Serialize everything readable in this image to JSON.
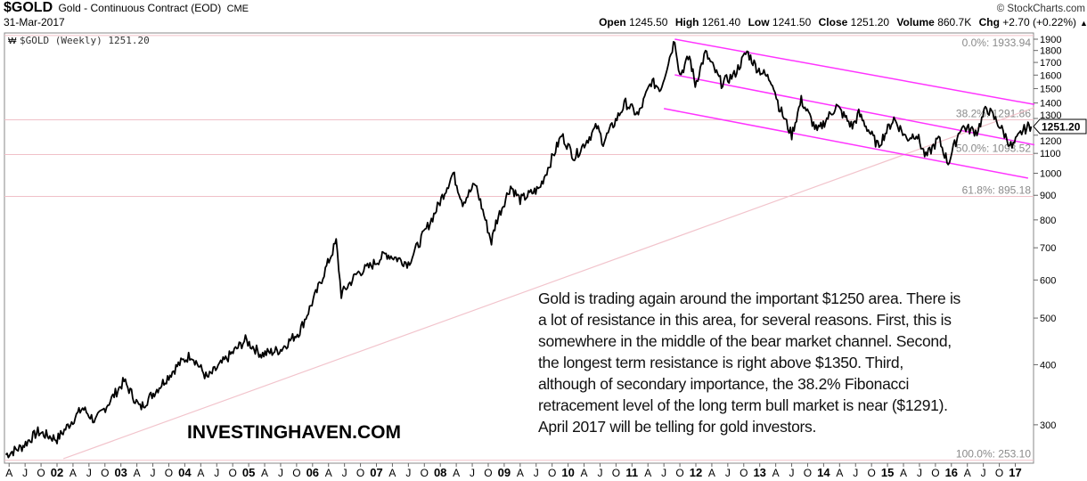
{
  "header": {
    "symbol": "$GOLD",
    "name": "Gold - Continuous Contract (EOD)",
    "exchange": "CME",
    "date": "31-Mar-2017",
    "copyright": "© StockCharts.com",
    "open_label": "Open",
    "open": "1245.50",
    "high_label": "High",
    "high": "1261.40",
    "low_label": "Low",
    "low": "1241.50",
    "close_label": "Close",
    "close": "1251.20",
    "volume_label": "Volume",
    "volume": "860.7K",
    "chg_label": "Chg",
    "chg": "+2.70 (+0.22%)"
  },
  "legend": "$GOLD (Weekly) 1251.20",
  "price_tag": "1251.20",
  "watermark": "INVESTINGHAVEN.COM",
  "annotation": [
    "Gold is trading again around the important $1250 area. There is",
    "a lot of resistance in this area, for several reasons. First, this is",
    "somewhere in the middle of the bear market channel. Second,",
    "the longest term resistance is right above $1350. Third,",
    "although of secondary importance, the 38.2% Fibonacci",
    "retracement level of the long term bull market is near ($1291).",
    "April 2017 will be telling for gold investors."
  ],
  "colors": {
    "price": "#000000",
    "channel": "#ff33ff",
    "trendline": "#f2c4cc",
    "fib": "#f0c0c8"
  },
  "chart_data": {
    "type": "line",
    "title": "$GOLD Gold - Continuous Contract (EOD) CME",
    "y_scale": "log",
    "ylim": [
      240,
      1950
    ],
    "xlim": [
      2001.18,
      2017.27
    ],
    "y_ticks": [
      300,
      400,
      500,
      600,
      700,
      800,
      900,
      1000,
      1100,
      1200,
      1300,
      1400,
      1500,
      1600,
      1700,
      1800,
      1900
    ],
    "x_tick_start": 2001.25,
    "x_tick_step": 0.25,
    "x_tick_labels": [
      "A",
      "J",
      "O",
      "02",
      "A",
      "J",
      "O",
      "03",
      "A",
      "J",
      "O",
      "04",
      "A",
      "J",
      "O",
      "05",
      "A",
      "J",
      "O",
      "06",
      "A",
      "J",
      "O",
      "07",
      "A",
      "J",
      "O",
      "08",
      "A",
      "J",
      "O",
      "09",
      "A",
      "J",
      "O",
      "10",
      "A",
      "J",
      "O",
      "11",
      "A",
      "J",
      "O",
      "12",
      "A",
      "J",
      "O",
      "13",
      "A",
      "J",
      "O",
      "14",
      "A",
      "J",
      "O",
      "15",
      "A",
      "J",
      "O",
      "16",
      "A",
      "J",
      "O",
      "17"
    ],
    "series": [
      {
        "name": "$GOLD (Weekly)",
        "points": [
          [
            2001.2,
            260
          ],
          [
            2001.45,
            270
          ],
          [
            2001.7,
            290
          ],
          [
            2002.0,
            280
          ],
          [
            2002.4,
            325
          ],
          [
            2002.6,
            305
          ],
          [
            2003.05,
            370
          ],
          [
            2003.3,
            325
          ],
          [
            2003.6,
            360
          ],
          [
            2003.9,
            400
          ],
          [
            2004.1,
            420
          ],
          [
            2004.35,
            375
          ],
          [
            2004.6,
            405
          ],
          [
            2004.95,
            450
          ],
          [
            2005.2,
            420
          ],
          [
            2005.5,
            430
          ],
          [
            2005.8,
            470
          ],
          [
            2006.05,
            560
          ],
          [
            2006.37,
            720
          ],
          [
            2006.45,
            560
          ],
          [
            2006.7,
            620
          ],
          [
            2006.9,
            640
          ],
          [
            2007.15,
            680
          ],
          [
            2007.5,
            650
          ],
          [
            2007.7,
            730
          ],
          [
            2007.9,
            820
          ],
          [
            2008.2,
            1000
          ],
          [
            2008.35,
            870
          ],
          [
            2008.55,
            950
          ],
          [
            2008.8,
            720
          ],
          [
            2008.87,
            790
          ],
          [
            2009.1,
            940
          ],
          [
            2009.25,
            880
          ],
          [
            2009.55,
            930
          ],
          [
            2009.9,
            1200
          ],
          [
            2010.1,
            1080
          ],
          [
            2010.45,
            1250
          ],
          [
            2010.55,
            1160
          ],
          [
            2010.9,
            1400
          ],
          [
            2011.1,
            1320
          ],
          [
            2011.3,
            1550
          ],
          [
            2011.45,
            1500
          ],
          [
            2011.67,
            1900
          ],
          [
            2011.75,
            1600
          ],
          [
            2011.9,
            1750
          ],
          [
            2011.99,
            1530
          ],
          [
            2012.15,
            1780
          ],
          [
            2012.4,
            1540
          ],
          [
            2012.6,
            1600
          ],
          [
            2012.8,
            1790
          ],
          [
            2012.95,
            1660
          ],
          [
            2013.2,
            1550
          ],
          [
            2013.3,
            1380
          ],
          [
            2013.5,
            1200
          ],
          [
            2013.65,
            1420
          ],
          [
            2013.9,
            1220
          ],
          [
            2014.2,
            1380
          ],
          [
            2014.45,
            1250
          ],
          [
            2014.55,
            1330
          ],
          [
            2014.85,
            1140
          ],
          [
            2015.1,
            1300
          ],
          [
            2015.3,
            1180
          ],
          [
            2015.45,
            1210
          ],
          [
            2015.6,
            1080
          ],
          [
            2015.8,
            1180
          ],
          [
            2015.95,
            1050
          ],
          [
            2016.15,
            1250
          ],
          [
            2016.4,
            1220
          ],
          [
            2016.55,
            1370
          ],
          [
            2016.75,
            1260
          ],
          [
            2016.95,
            1130
          ],
          [
            2017.1,
            1220
          ],
          [
            2017.2,
            1250
          ],
          [
            2017.25,
            1251.2
          ]
        ]
      }
    ],
    "channel_lines": [
      {
        "name": "upper-channel",
        "from": [
          2011.67,
          1900
        ],
        "to": [
          2017.3,
          1390
        ]
      },
      {
        "name": "middle-channel",
        "from": [
          2011.67,
          1602
        ],
        "to": [
          2017.3,
          1146
        ]
      },
      {
        "name": "lower-channel",
        "from": [
          2011.5,
          1363
        ],
        "to": [
          2017.2,
          977
        ]
      }
    ],
    "trendline": {
      "from": [
        2002.1,
        255
      ],
      "to": [
        2017.3,
        1370
      ]
    },
    "fibonacci": [
      {
        "label": "0.0%: 1933.94",
        "value": 1933.94
      },
      {
        "label": "38.2%: 1291.86",
        "value": 1291.86
      },
      {
        "label": "50.0%: 1093.52",
        "value": 1093.52
      },
      {
        "label": "61.8%: 895.18",
        "value": 895.18
      },
      {
        "label": "100.0%: 253.10",
        "value": 253.1
      }
    ],
    "last_value": 1251.2
  }
}
